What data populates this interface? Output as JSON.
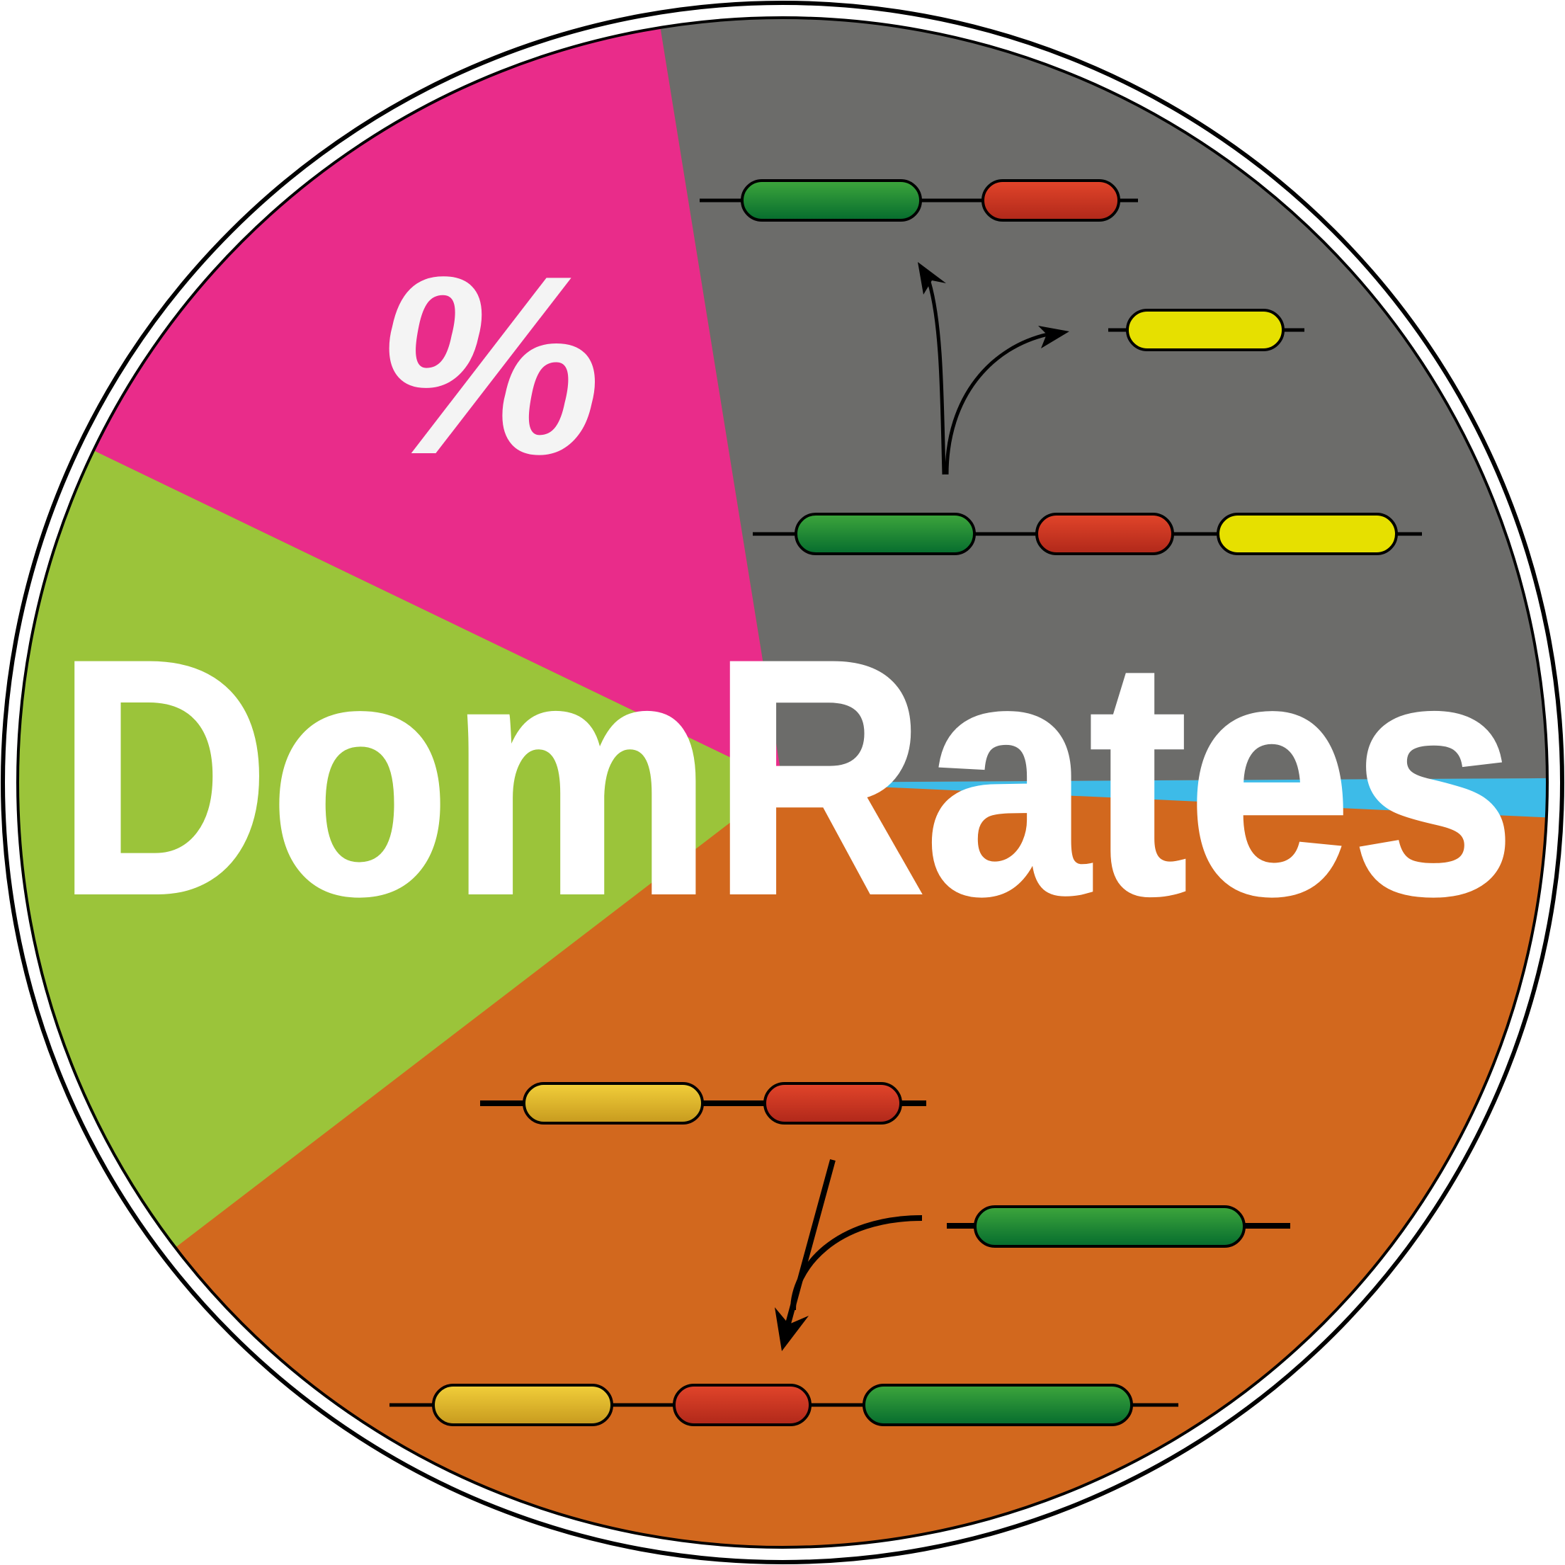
{
  "logo": {
    "title": "DomRates",
    "percent_symbol": "%",
    "colors": {
      "pink": "#E92C8A",
      "gray": "#6C6C6A",
      "green": "#9BC43A",
      "orange": "#D2681E",
      "blue": "#3DBBE8",
      "outline": "#000000",
      "title_text": "#ffffff",
      "percent_text": "#F4F4F4"
    },
    "domains": {
      "green": [
        "#3EA63C",
        "#066C2E"
      ],
      "red": [
        "#E2452A",
        "#B0281A"
      ],
      "yellow": [
        "#E6E000",
        "#E6E000"
      ],
      "gold": [
        "#F2CF3A",
        "#C79A1E"
      ]
    }
  }
}
